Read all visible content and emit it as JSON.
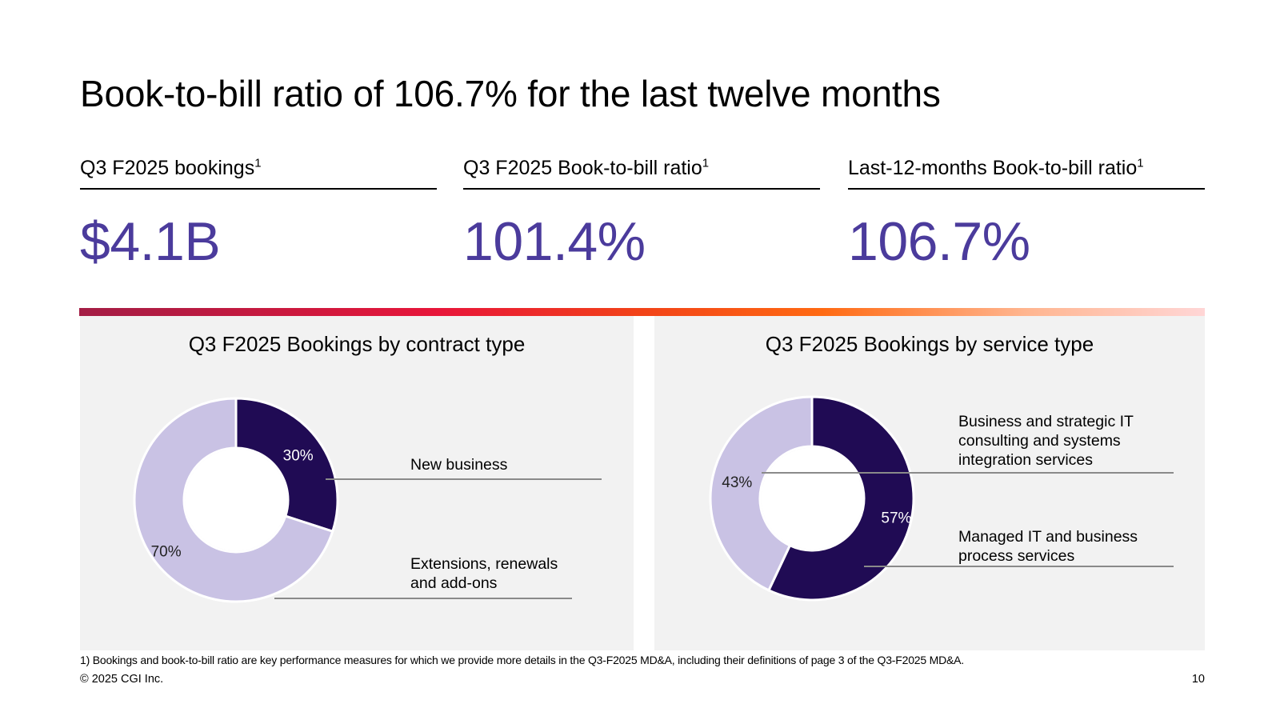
{
  "title": "Book-to-bill ratio of 106.7% for the last twelve months",
  "kpis": [
    {
      "label": "Q3 F2025 bookings",
      "sup": "1",
      "value": "$4.1B"
    },
    {
      "label": "Q3 F2025 Book-to-bill ratio",
      "sup": "1",
      "value": "101.4%"
    },
    {
      "label": "Last-12-months Book-to-bill ratio",
      "sup": "1",
      "value": "106.7%"
    }
  ],
  "colors": {
    "accent_purple": "#4b3b9c",
    "dark_slice": "#200b54",
    "light_slice": "#c9c2e4",
    "panel_bg": "#f2f2f2"
  },
  "chart_data": [
    {
      "type": "pie",
      "variant": "donut",
      "title": "Q3 F2025 Bookings by contract type",
      "categories": [
        "New business",
        "Extensions, renewals and add-ons"
      ],
      "values": [
        30,
        70
      ],
      "labels": [
        "30%",
        "70%"
      ],
      "colors": [
        "#200b54",
        "#c9c2e4"
      ]
    },
    {
      "type": "pie",
      "variant": "donut",
      "title": "Q3 F2025 Bookings by service type",
      "categories": [
        "Managed IT and business process services",
        "Business and strategic IT consulting and systems integration services"
      ],
      "values": [
        57,
        43
      ],
      "labels": [
        "57%",
        "43%"
      ],
      "colors": [
        "#200b54",
        "#c9c2e4"
      ]
    }
  ],
  "legend_left": {
    "new_business": "New business",
    "extensions_line1": "Extensions, renewals",
    "extensions_line2": "and add-ons"
  },
  "legend_right": {
    "consulting_line1": "Business and strategic IT",
    "consulting_line2": "consulting and systems",
    "consulting_line3": "integration services",
    "managed_line1": "Managed IT and business",
    "managed_line2": "process services"
  },
  "footnote": "1) Bookings and book-to-bill ratio are key performance measures for which we provide more details in the Q3-F2025 MD&A, including their definitions of page 3 of the Q3-F2025 MD&A.",
  "copyright": "© 2025 CGI Inc.",
  "page_number": "10"
}
